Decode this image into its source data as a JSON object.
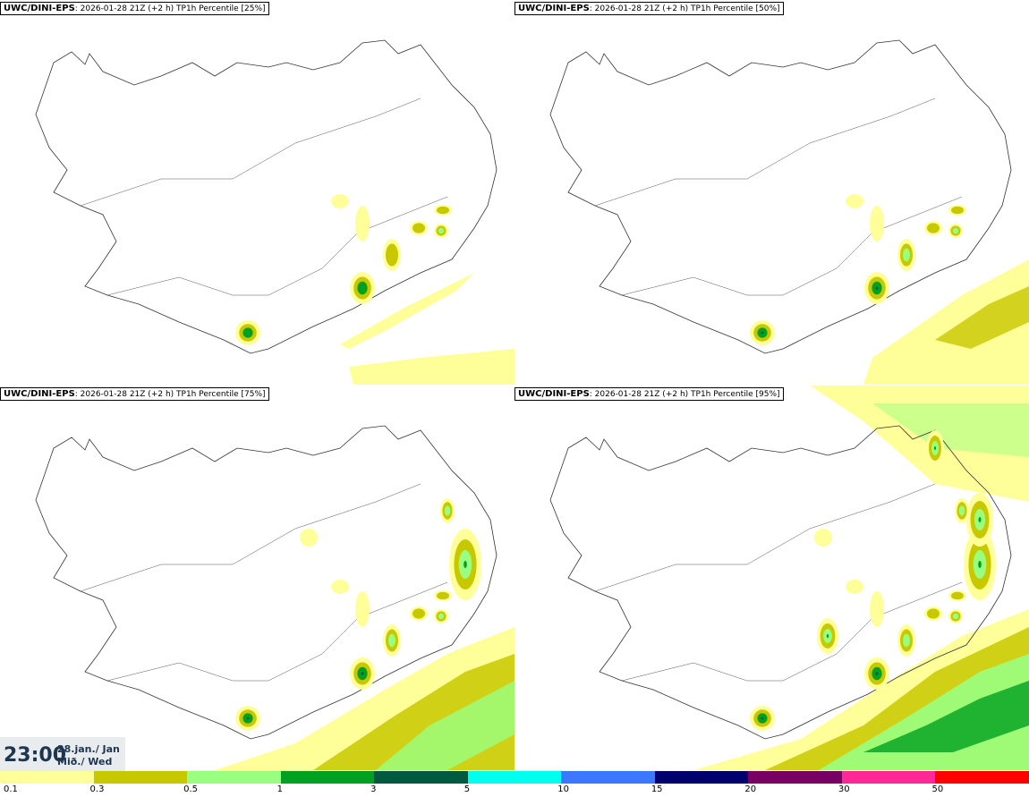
{
  "panels": [
    {
      "model": "UWC/DINI-EPS",
      "meta": ": 2026-01-28 21Z (+2 h) TP1h Percentile [25%]",
      "intensity": 0
    },
    {
      "model": "UWC/DINI-EPS",
      "meta": ": 2026-01-28 21Z (+2 h) TP1h Percentile [50%]",
      "intensity": 1
    },
    {
      "model": "UWC/DINI-EPS",
      "meta": ": 2026-01-28 21Z (+2 h) TP1h Percentile [75%]",
      "intensity": 2
    },
    {
      "model": "UWC/DINI-EPS",
      "meta": ": 2026-01-28 21Z (+2 h) TP1h Percentile [95%]",
      "intensity": 3
    }
  ],
  "time": "23:00",
  "date_line1": "28.jan./ Jan",
  "date_line2": "Mið./ Wed",
  "legend": {
    "colors": [
      "#ffff99",
      "#c8c800",
      "#99ff80",
      "#00a020",
      "#005a40",
      "#00ffee",
      "#3c78ff",
      "#00006e",
      "#780064",
      "#ff2896",
      "#ff0000"
    ],
    "ticks": [
      "0.1",
      "0.3",
      "0.5",
      "1",
      "3",
      "5",
      "10",
      "15",
      "20",
      "30",
      "50"
    ]
  }
}
